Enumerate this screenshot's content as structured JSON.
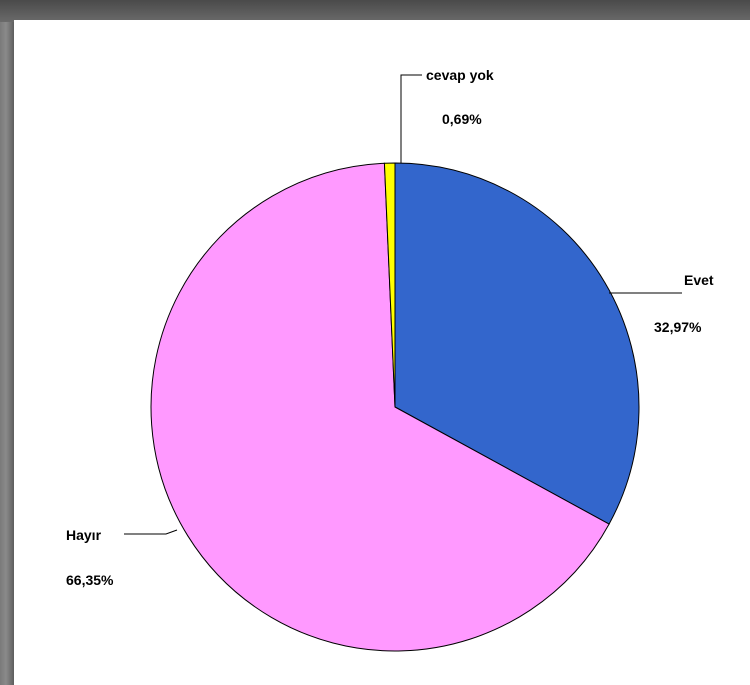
{
  "chart_data": {
    "type": "pie",
    "slices": [
      {
        "label": "Evet",
        "value": 32.97,
        "value_label": "32,97%",
        "color": "#3366cc"
      },
      {
        "label": "Hayır",
        "value": 66.35,
        "value_label": "66,35%",
        "color": "#ff99ff"
      },
      {
        "label": "cevap yok",
        "value": 0.69,
        "value_label": "0,69%",
        "color": "#ffff00"
      }
    ],
    "start_angle_deg": 0,
    "direction": "clockwise",
    "legend": "none"
  }
}
